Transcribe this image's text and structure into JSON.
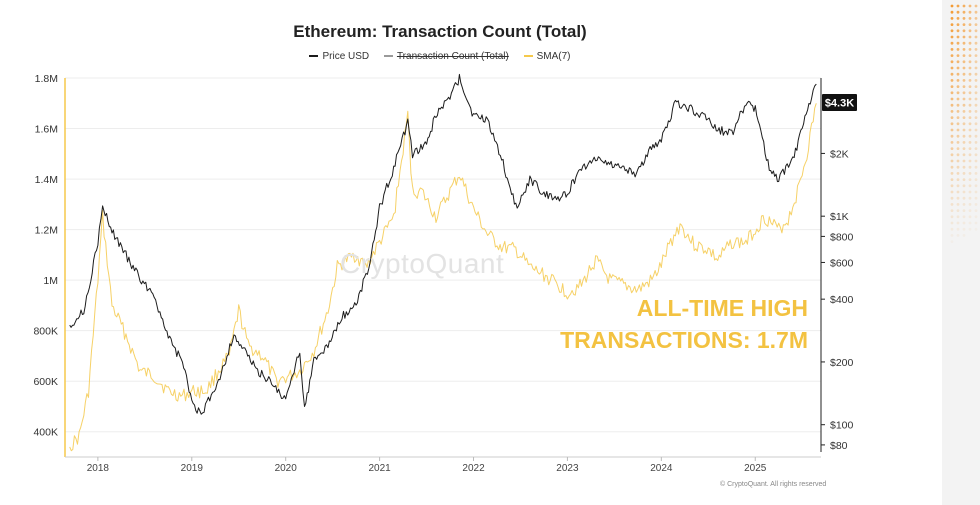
{
  "chart_data": {
    "type": "line",
    "title": "Ethereum: Transaction Count (Total)",
    "legend": [
      "Price USD",
      "Transaction Count (Total)",
      "SMA(7)"
    ],
    "legend_placement": "top-center",
    "x_ticks": [
      "2018",
      "2019",
      "2020",
      "2021",
      "2022",
      "2023",
      "2024",
      "2025"
    ],
    "y_left_ticks": [
      "1.8M",
      "1.6M",
      "1.4M",
      "1.2M",
      "1M",
      "800K",
      "600K",
      "400K"
    ],
    "y_left_range": [
      300000,
      1800000
    ],
    "y_right_ticks": [
      "$2K",
      "$1K",
      "$800",
      "$600",
      "$400",
      "$200",
      "$100",
      "$80"
    ],
    "y_right_scale": "log",
    "y_right_range": [
      70,
      4600
    ],
    "price_badge": "$4.3K",
    "grid": "horizontal",
    "series": [
      {
        "name": "Price USD",
        "color": "#1c1c1c",
        "x": [
          2017.7,
          2017.85,
          2018.0,
          2018.05,
          2018.15,
          2018.3,
          2018.45,
          2018.6,
          2018.75,
          2018.9,
          2019.0,
          2019.1,
          2019.3,
          2019.45,
          2019.55,
          2019.7,
          2019.85,
          2020.0,
          2020.15,
          2020.2,
          2020.3,
          2020.45,
          2020.6,
          2020.75,
          2020.9,
          2021.0,
          2021.15,
          2021.3,
          2021.35,
          2021.5,
          2021.6,
          2021.75,
          2021.85,
          2022.0,
          2022.15,
          2022.3,
          2022.45,
          2022.6,
          2022.75,
          2022.9,
          2023.0,
          2023.15,
          2023.3,
          2023.45,
          2023.6,
          2023.75,
          2023.85,
          2024.0,
          2024.15,
          2024.3,
          2024.45,
          2024.6,
          2024.75,
          2024.9,
          2025.0,
          2025.15,
          2025.25,
          2025.4,
          2025.5,
          2025.6,
          2025.65
        ],
        "values": [
          300,
          350,
          750,
          1100,
          850,
          650,
          500,
          420,
          260,
          200,
          130,
          110,
          170,
          270,
          230,
          180,
          160,
          130,
          230,
          120,
          200,
          240,
          330,
          380,
          600,
          1100,
          1700,
          2800,
          2000,
          2200,
          3100,
          3700,
          4600,
          3000,
          2900,
          1900,
          1100,
          1500,
          1300,
          1200,
          1300,
          1700,
          1900,
          1800,
          1700,
          1600,
          2000,
          2300,
          3500,
          3300,
          3000,
          2600,
          2500,
          3500,
          3300,
          1700,
          1500,
          1900,
          2600,
          3800,
          4300
        ]
      },
      {
        "name": "SMA(7)",
        "color": "#f5c94c",
        "x": [
          2017.7,
          2017.8,
          2017.9,
          2018.0,
          2018.05,
          2018.15,
          2018.3,
          2018.45,
          2018.6,
          2018.75,
          2018.9,
          2019.0,
          2019.15,
          2019.3,
          2019.4,
          2019.5,
          2019.6,
          2019.75,
          2019.9,
          2020.05,
          2020.15,
          2020.3,
          2020.45,
          2020.55,
          2020.65,
          2020.75,
          2020.85,
          2021.0,
          2021.15,
          2021.3,
          2021.35,
          2021.45,
          2021.6,
          2021.75,
          2021.85,
          2022.0,
          2022.15,
          2022.3,
          2022.45,
          2022.6,
          2022.75,
          2022.9,
          2023.0,
          2023.15,
          2023.3,
          2023.45,
          2023.6,
          2023.75,
          2023.9,
          2024.0,
          2024.1,
          2024.2,
          2024.35,
          2024.5,
          2024.6,
          2024.75,
          2024.9,
          2025.0,
          2025.1,
          2025.25,
          2025.35,
          2025.45,
          2025.55,
          2025.6,
          2025.65
        ],
        "values": [
          340000,
          380000,
          560000,
          1000000,
          1250000,
          900000,
          780000,
          640000,
          620000,
          560000,
          540000,
          560000,
          560000,
          650000,
          700000,
          880000,
          740000,
          700000,
          600000,
          620000,
          640000,
          720000,
          880000,
          1050000,
          1080000,
          1100000,
          1050000,
          1150000,
          1250000,
          1650000,
          1350000,
          1350000,
          1250000,
          1350000,
          1420000,
          1280000,
          1180000,
          1130000,
          1120000,
          1050000,
          1020000,
          980000,
          950000,
          980000,
          1080000,
          1000000,
          980000,
          960000,
          1000000,
          1060000,
          1150000,
          1220000,
          1140000,
          1120000,
          1080000,
          1150000,
          1150000,
          1200000,
          1250000,
          1200000,
          1240000,
          1350000,
          1500000,
          1600000,
          1700000
        ]
      }
    ],
    "annotation": [
      "ALL-TIME HIGH",
      "TRANSACTIONS: 1.7M"
    ]
  },
  "watermark": "CryptoQuant",
  "copyright": "© CryptoQuant. All rights reserved"
}
